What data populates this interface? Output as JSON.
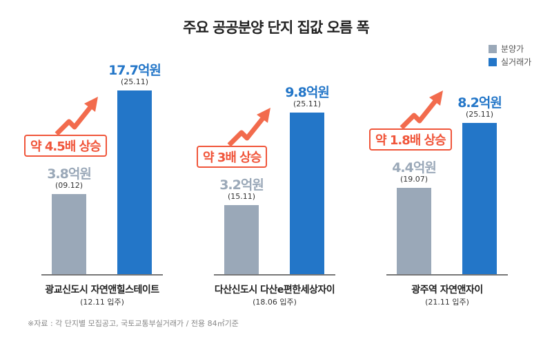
{
  "chart_data": {
    "type": "bar",
    "title": "주요 공공분양 단지 집값 오름 폭",
    "legend": [
      {
        "name": "분양가",
        "color": "#9aa8b8"
      },
      {
        "name": "실거래가",
        "color": "#2376c8"
      }
    ],
    "legend_position": "top-right",
    "unit": "억원",
    "groups": [
      {
        "name": "광교신도시 자연앤힐스테이트",
        "move_in": "(12.11 입주)",
        "presale": {
          "value": 3.8,
          "label": "3.8억원",
          "date": "(09.12)"
        },
        "actual": {
          "value": 17.7,
          "label": "17.7억원",
          "date": "(25.11)"
        },
        "increase": "약 4.5배 상승"
      },
      {
        "name": "다산신도시 다산e편한세상자이",
        "move_in": "(18.06 입주)",
        "presale": {
          "value": 3.2,
          "label": "3.2억원",
          "date": "(15.11)"
        },
        "actual": {
          "value": 9.8,
          "label": "9.8억원",
          "date": "(25.11)"
        },
        "increase": "약 3배 상승"
      },
      {
        "name": "광주역 자연앤자이",
        "move_in": "(21.11 입주)",
        "presale": {
          "value": 4.4,
          "label": "4.4억원",
          "date": "(19.07)"
        },
        "actual": {
          "value": 8.2,
          "label": "8.2억원",
          "date": "(25.11)"
        },
        "increase": "약 1.8배 상승"
      }
    ],
    "grid": false
  },
  "source": "※자료 : 각 단지별 모집공고, 국토교통부실거래가 / 전용 84㎡기준",
  "colors": {
    "accent": "#f0553a",
    "presale": "#9aa8b8",
    "actual": "#2376c8"
  }
}
